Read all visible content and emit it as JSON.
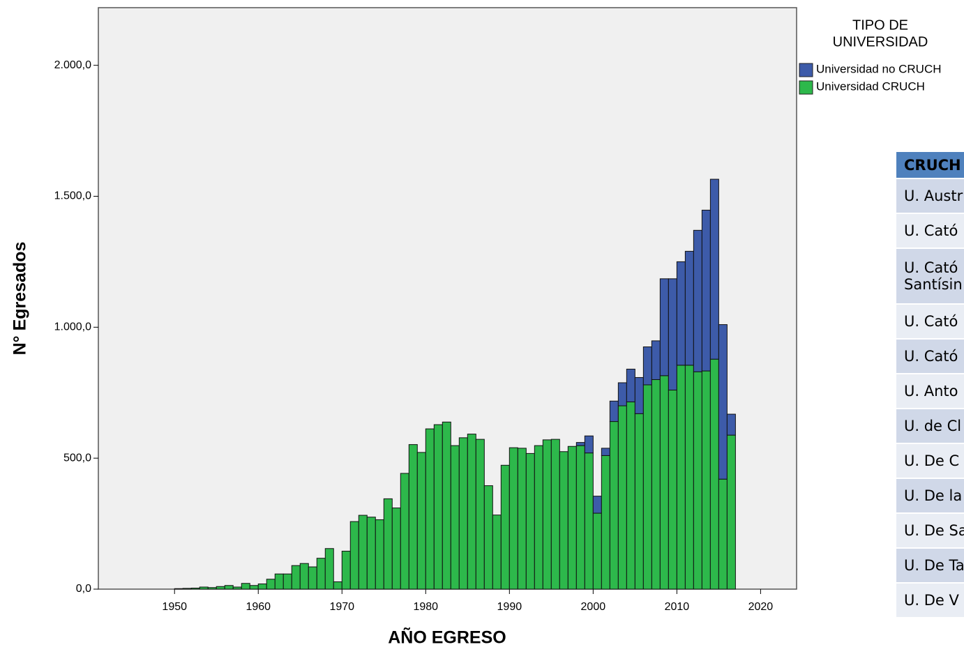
{
  "chart_data": {
    "type": "stacked_bar",
    "xlabel": "AÑO EGRESO",
    "ylabel": "N° Egresados",
    "legend_title": [
      "TIPO DE",
      "UNIVERSIDAD"
    ],
    "x": [
      1950,
      1951,
      1952,
      1953,
      1954,
      1955,
      1956,
      1957,
      1958,
      1959,
      1960,
      1961,
      1962,
      1963,
      1964,
      1965,
      1966,
      1967,
      1968,
      1969,
      1970,
      1971,
      1972,
      1973,
      1974,
      1975,
      1976,
      1977,
      1978,
      1979,
      1980,
      1981,
      1982,
      1983,
      1984,
      1985,
      1986,
      1987,
      1988,
      1989,
      1990,
      1991,
      1992,
      1993,
      1994,
      1995,
      1996,
      1997,
      1998,
      1999,
      2000,
      2001,
      2002,
      2003,
      2004,
      2005,
      2006,
      2007,
      2008,
      2009,
      2010,
      2011,
      2012,
      2013,
      2014,
      2015,
      2016
    ],
    "series": [
      {
        "name": "Universidad CRUCH",
        "color": "#2db84b",
        "values": [
          2,
          3,
          4,
          8,
          6,
          10,
          14,
          8,
          22,
          14,
          20,
          38,
          58,
          58,
          90,
          98,
          85,
          118,
          155,
          28,
          145,
          258,
          282,
          275,
          265,
          345,
          310,
          442,
          552,
          522,
          612,
          628,
          638,
          548,
          578,
          592,
          572,
          395,
          283,
          473,
          540,
          538,
          518,
          548,
          570,
          572,
          525,
          545,
          548,
          520,
          290,
          510,
          640,
          700,
          715,
          670,
          780,
          800,
          815,
          760,
          855,
          855,
          830,
          833,
          878,
          420,
          588
        ]
      },
      {
        "name": "Universidad no CRUCH",
        "color": "#3d5ba9",
        "values": [
          0,
          0,
          0,
          0,
          0,
          0,
          0,
          0,
          0,
          0,
          0,
          0,
          0,
          0,
          0,
          0,
          0,
          0,
          0,
          0,
          0,
          0,
          0,
          0,
          0,
          0,
          0,
          0,
          0,
          0,
          0,
          0,
          0,
          0,
          0,
          0,
          0,
          0,
          0,
          0,
          0,
          0,
          0,
          0,
          0,
          0,
          0,
          0,
          12,
          65,
          65,
          28,
          78,
          88,
          125,
          138,
          145,
          148,
          370,
          425,
          395,
          435,
          540,
          614,
          687,
          590,
          80
        ]
      }
    ],
    "xlim": [
      1940.9,
      2024.3
    ],
    "xticks": [
      1950,
      1960,
      1970,
      1980,
      1990,
      2000,
      2010,
      2020
    ],
    "ylim": [
      0,
      2220
    ],
    "yticks": [
      {
        "value": 0,
        "label": "0,0"
      },
      {
        "value": 500,
        "label": "500,0"
      },
      {
        "value": 1000,
        "label": "1.000,0"
      },
      {
        "value": 1500,
        "label": "1.500,0"
      },
      {
        "value": 2000,
        "label": "2.000,0"
      }
    ]
  },
  "table": {
    "header": "CRUCH",
    "rows": [
      "U. Austr",
      "U. Cató",
      [
        "U. Cató",
        "Santísin"
      ],
      "U. Cató",
      "U. Cató",
      "U. Anto",
      "U. de Cl",
      "U. De C",
      "U. De la",
      "U. De Sa",
      "U. De Ta",
      "U. De V"
    ]
  }
}
